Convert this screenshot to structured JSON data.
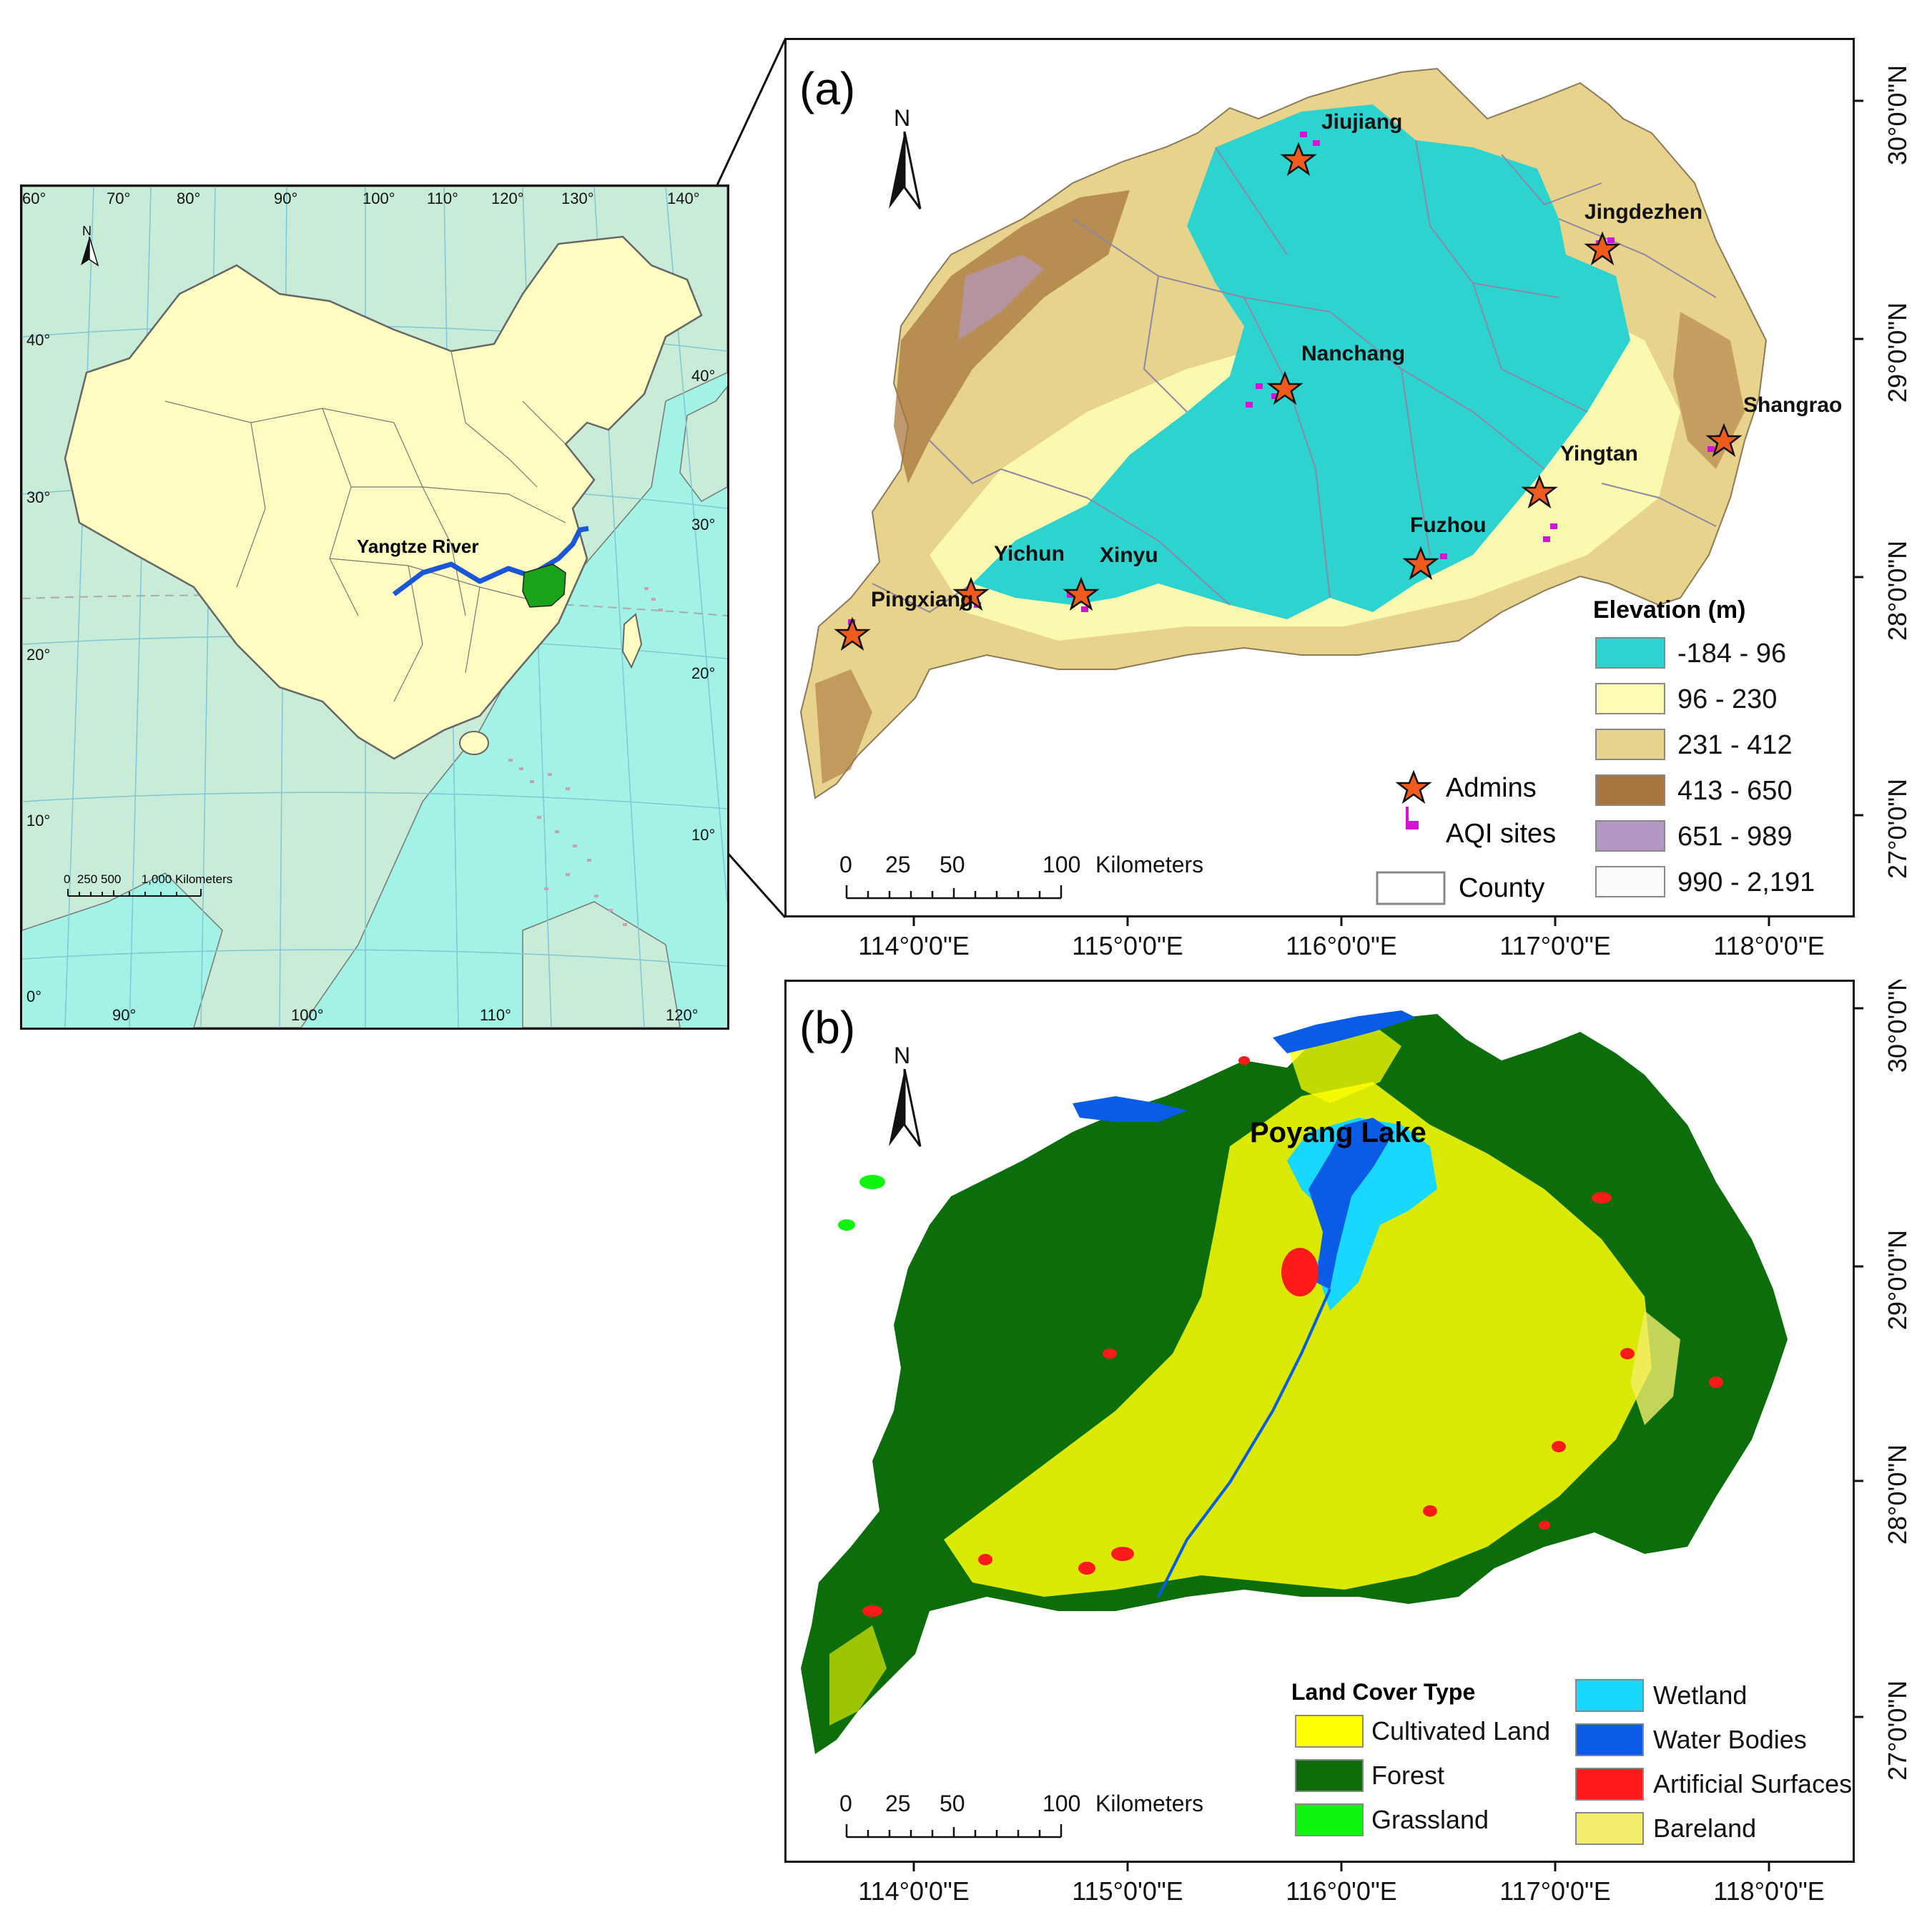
{
  "inset": {
    "lon_ticks_top": [
      "60°",
      "70°",
      "80°",
      "90°",
      "100°",
      "110°",
      "120°",
      "130°",
      "140°"
    ],
    "lon_ticks_bottom": [
      "90°",
      "100°",
      "110°",
      "120°"
    ],
    "lat_ticks_left": [
      "40°",
      "30°",
      "20°",
      "10°",
      "0°"
    ],
    "lat_ticks_right": [
      "40°",
      "30°",
      "20°",
      "10°"
    ],
    "north": "N",
    "river_label": "Yangtze River",
    "scale_bar": "0  250 500      1,000 Kilometers",
    "colors": {
      "sea": "#a3f2e6",
      "china": "#fffcc2",
      "neighbors": "#c9ecd8",
      "study_area": "#19a319",
      "river": "#1a56d6"
    }
  },
  "panel_a": {
    "label": "(a)",
    "north": "N",
    "cities": [
      "Jiujiang",
      "Jingdezhen",
      "Nanchang",
      "Shangrao",
      "Yingtan",
      "Fuzhou",
      "Yichun",
      "Xinyu",
      "Pingxiang"
    ],
    "legend_symbols": [
      {
        "label": "Admins",
        "icon": "star-icon"
      },
      {
        "label": "AQI sites",
        "icon": "flag-icon"
      },
      {
        "label": "County",
        "icon": "county-box-icon"
      }
    ],
    "elevation_legend": {
      "title": "Elevation (m)",
      "classes": [
        {
          "label": "-184 - 96",
          "color": "#2dd4cf"
        },
        {
          "label": "96 - 230",
          "color": "#fdfcb4"
        },
        {
          "label": "231 - 412",
          "color": "#e8d38c"
        },
        {
          "label": "413 - 650",
          "color": "#a8753f"
        },
        {
          "label": "651 - 989",
          "color": "#b497c2"
        },
        {
          "label": "990 - 2,191",
          "color": "#fdfbfd"
        }
      ]
    },
    "scale_numbers": [
      "0",
      "25",
      "50",
      "100"
    ],
    "scale_unit": "Kilometers"
  },
  "panel_b": {
    "label": "(b)",
    "north": "N",
    "lake_label": "Poyang Lake",
    "scale_numbers": [
      "0",
      "25",
      "50",
      "100"
    ],
    "scale_unit": "Kilometers",
    "landcover_legend": {
      "title": "Land Cover Type",
      "classes": [
        {
          "label": "Cultivated Land",
          "color": "#ffff00"
        },
        {
          "label": "Forest",
          "color": "#0b6e0b"
        },
        {
          "label": "Grassland",
          "color": "#0ff50f"
        },
        {
          "label": "Wetland",
          "color": "#18d8ff"
        },
        {
          "label": "Water Bodies",
          "color": "#0a5ce6"
        },
        {
          "label": "Artificial Surfaces",
          "color": "#ff1a1a"
        },
        {
          "label": "Bareland",
          "color": "#f2ee6c"
        }
      ]
    }
  },
  "axes": {
    "lon": [
      "114°0'0\"E",
      "115°0'0\"E",
      "116°0'0\"E",
      "117°0'0\"E",
      "118°0'0\"E"
    ],
    "lat": [
      "30°0'0\"N",
      "29°0'0\"N",
      "28°0'0\"N",
      "27°0'0\"N"
    ]
  }
}
